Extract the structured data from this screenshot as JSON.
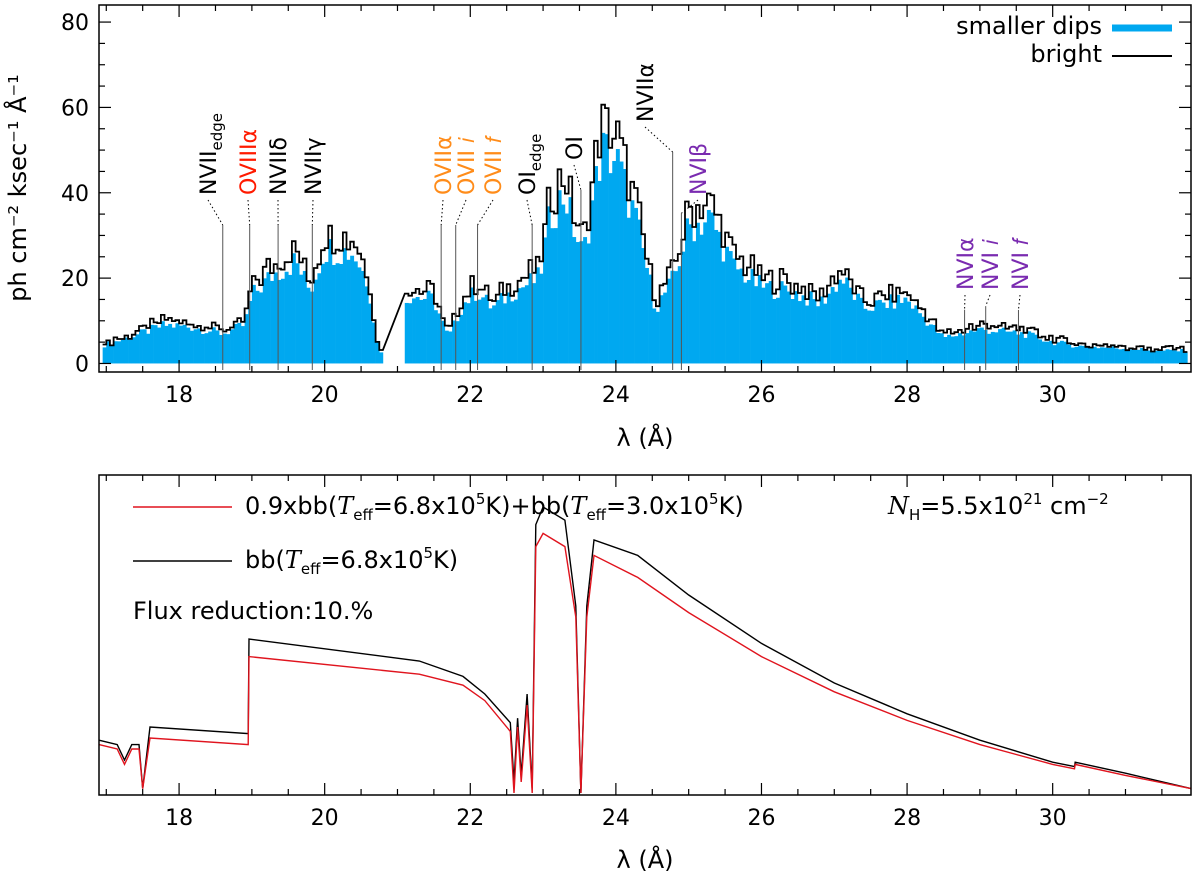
{
  "chart_data": [
    {
      "type": "bar",
      "xlabel": "λ (Å)",
      "ylabel": "ph cm⁻² ksec⁻¹ Å⁻¹",
      "xlim": [
        16.9,
        31.9
      ],
      "ylim": [
        -2,
        84
      ],
      "xticks": [
        "18",
        "20",
        "22",
        "24",
        "26",
        "28",
        "30"
      ],
      "yticks": [
        "0",
        "20",
        "40",
        "60",
        "80"
      ],
      "legend_position": "top-right",
      "series": [
        {
          "name": "smaller dips",
          "style": "filled bars",
          "color": "#00a8f0"
        },
        {
          "name": "bright",
          "style": "step line",
          "color": "#000000"
        }
      ],
      "bin_width": 0.05,
      "profile_points": [
        [
          16.9,
          4
        ],
        [
          17.3,
          6
        ],
        [
          17.8,
          9
        ],
        [
          18.2,
          8.5
        ],
        [
          18.6,
          7
        ],
        [
          18.9,
          9
        ],
        [
          19.0,
          16
        ],
        [
          19.3,
          21
        ],
        [
          19.6,
          24
        ],
        [
          19.8,
          17
        ],
        [
          20.0,
          27
        ],
        [
          20.4,
          26
        ],
        [
          20.6,
          19
        ],
        [
          20.75,
          2
        ],
        [
          21.15,
          16
        ],
        [
          21.5,
          15
        ],
        [
          21.7,
          6
        ],
        [
          21.9,
          14
        ],
        [
          22.1,
          17
        ],
        [
          22.3,
          13
        ],
        [
          22.6,
          17
        ],
        [
          22.95,
          20
        ],
        [
          23.1,
          35
        ],
        [
          23.3,
          40
        ],
        [
          23.4,
          33
        ],
        [
          23.55,
          25
        ],
        [
          23.8,
          50
        ],
        [
          24.0,
          48
        ],
        [
          24.3,
          32
        ],
        [
          24.55,
          13
        ],
        [
          24.8,
          20
        ],
        [
          25.0,
          32
        ],
        [
          25.3,
          34
        ],
        [
          25.6,
          23
        ],
        [
          26.0,
          18
        ],
        [
          26.4,
          17
        ],
        [
          26.8,
          14
        ],
        [
          27.1,
          20
        ],
        [
          27.4,
          13
        ],
        [
          28.0,
          15
        ],
        [
          28.5,
          6
        ],
        [
          29.0,
          8
        ],
        [
          29.6,
          7
        ],
        [
          30.0,
          5
        ],
        [
          30.4,
          4
        ],
        [
          31.0,
          3.5
        ],
        [
          31.5,
          3
        ],
        [
          31.8,
          3
        ]
      ],
      "bright_ratio": 1.12,
      "annotations": [
        {
          "label": "NVII",
          "sub": "edge",
          "color": "#000000",
          "x": 18.6
        },
        {
          "label": "OVIIIα",
          "color": "#ff1a00",
          "x": 18.97
        },
        {
          "label": "NVIIδ",
          "color": "#000000",
          "x": 19.36
        },
        {
          "label": "NVIIγ",
          "color": "#000000",
          "x": 19.83
        },
        {
          "label": "OVIIα",
          "color": "#ff8c1a",
          "x": 21.6
        },
        {
          "label": "OVII 𝑖",
          "color": "#ff8c1a",
          "x": 21.8
        },
        {
          "label": "OVII 𝑓",
          "color": "#ff8c1a",
          "x": 22.1
        },
        {
          "label": "OI",
          "sub": "edge",
          "color": "#000000",
          "x": 22.85
        },
        {
          "label": "OI",
          "color": "#000000",
          "x": 23.52
        },
        {
          "label": "NVIIα",
          "color": "#000000",
          "x": 24.78
        },
        {
          "label": "NVIβ",
          "color": "#7a2bb0",
          "x": 24.9
        },
        {
          "label": "NVIα",
          "color": "#7a2bb0",
          "x": 28.79
        },
        {
          "label": "NVI 𝑖",
          "color": "#7a2bb0",
          "x": 29.08
        },
        {
          "label": "NVI 𝑓",
          "color": "#7a2bb0",
          "x": 29.53
        }
      ]
    },
    {
      "type": "line",
      "xlabel": "λ (Å)",
      "ylabel": "",
      "xlim": [
        16.9,
        31.9
      ],
      "xticks": [
        "18",
        "20",
        "22",
        "24",
        "26",
        "28",
        "30"
      ],
      "legend_position": "top-left",
      "series": [
        {
          "name": "0.9xbb(Teff=6.8x10⁵K)+bb(Teff=3.0x10⁵K)",
          "color": "#e0141e",
          "points": [
            [
              16.9,
              0.22
            ],
            [
              17.15,
              0.2
            ],
            [
              17.25,
              0.13
            ],
            [
              17.35,
              0.2
            ],
            [
              17.45,
              0.2
            ],
            [
              17.5,
              0.02
            ],
            [
              17.6,
              0.25
            ],
            [
              18.95,
              0.22
            ],
            [
              18.96,
              0.62
            ],
            [
              21.3,
              0.54
            ],
            [
              21.9,
              0.49
            ],
            [
              22.2,
              0.42
            ],
            [
              22.55,
              0.28
            ],
            [
              22.6,
              0.0
            ],
            [
              22.65,
              0.3
            ],
            [
              22.7,
              0.05
            ],
            [
              22.78,
              0.4
            ],
            [
              22.85,
              0.0
            ],
            [
              22.9,
              1.12
            ],
            [
              23.0,
              1.18
            ],
            [
              23.3,
              1.12
            ],
            [
              23.45,
              0.8
            ],
            [
              23.52,
              0.0
            ],
            [
              23.6,
              0.8
            ],
            [
              23.7,
              1.08
            ],
            [
              24.3,
              0.98
            ],
            [
              25.0,
              0.82
            ],
            [
              26.0,
              0.62
            ],
            [
              27.0,
              0.46
            ],
            [
              28.0,
              0.33
            ],
            [
              29.0,
              0.22
            ],
            [
              30.0,
              0.13
            ],
            [
              30.3,
              0.11
            ],
            [
              30.31,
              0.13
            ],
            [
              31.0,
              0.08
            ],
            [
              31.9,
              0.02
            ]
          ]
        },
        {
          "name": "bb(Teff=6.8x10⁵K)",
          "color": "#000000",
          "points": [
            [
              16.9,
              0.24
            ],
            [
              17.15,
              0.22
            ],
            [
              17.25,
              0.15
            ],
            [
              17.35,
              0.22
            ],
            [
              17.45,
              0.22
            ],
            [
              17.5,
              0.02
            ],
            [
              17.6,
              0.3
            ],
            [
              18.95,
              0.27
            ],
            [
              18.96,
              0.7
            ],
            [
              21.3,
              0.6
            ],
            [
              21.9,
              0.53
            ],
            [
              22.2,
              0.45
            ],
            [
              22.55,
              0.32
            ],
            [
              22.6,
              0.05
            ],
            [
              22.65,
              0.34
            ],
            [
              22.7,
              0.08
            ],
            [
              22.78,
              0.45
            ],
            [
              22.85,
              0.02
            ],
            [
              22.9,
              1.22
            ],
            [
              23.0,
              1.3
            ],
            [
              23.3,
              1.24
            ],
            [
              23.45,
              0.85
            ],
            [
              23.52,
              0.0
            ],
            [
              23.6,
              0.85
            ],
            [
              23.7,
              1.15
            ],
            [
              24.3,
              1.08
            ],
            [
              25.0,
              0.9
            ],
            [
              26.0,
              0.68
            ],
            [
              27.0,
              0.5
            ],
            [
              28.0,
              0.36
            ],
            [
              29.0,
              0.24
            ],
            [
              30.0,
              0.14
            ],
            [
              30.3,
              0.12
            ],
            [
              30.31,
              0.14
            ],
            [
              31.0,
              0.09
            ],
            [
              31.9,
              0.02
            ]
          ]
        }
      ],
      "annotations": {
        "nh": "NH=5.5x10²¹ cm⁻²",
        "flux": "Flux reduction:10.%"
      }
    }
  ],
  "labels": {
    "top_xlabel": "λ (Å)",
    "top_ylabel": "ph cm⁻² ksec⁻¹ Å⁻¹",
    "bottom_xlabel": "λ (Å)",
    "legend_top_1": "smaller dips",
    "legend_top_2": "bright",
    "legend_bot_1": "0.9xbb(",
    "legend_bot_1b": "=6.8x10",
    "legend_bot_1c": "K)+bb(",
    "legend_bot_1d": "=3.0x10",
    "legend_bot_1e": "K)",
    "legend_bot_2": "bb(",
    "legend_bot_2b": "=6.8x10",
    "legend_bot_2c": "K)",
    "teff": "T",
    "teff_sub": "eff",
    "exp5": "5",
    "nh_n": "N",
    "nh_sub": "H",
    "nh_val": "=5.5x10",
    "nh_exp": "21",
    "nh_unit": " cm",
    "nh_unit_exp": "−2",
    "flux": "Flux reduction:10.%"
  }
}
